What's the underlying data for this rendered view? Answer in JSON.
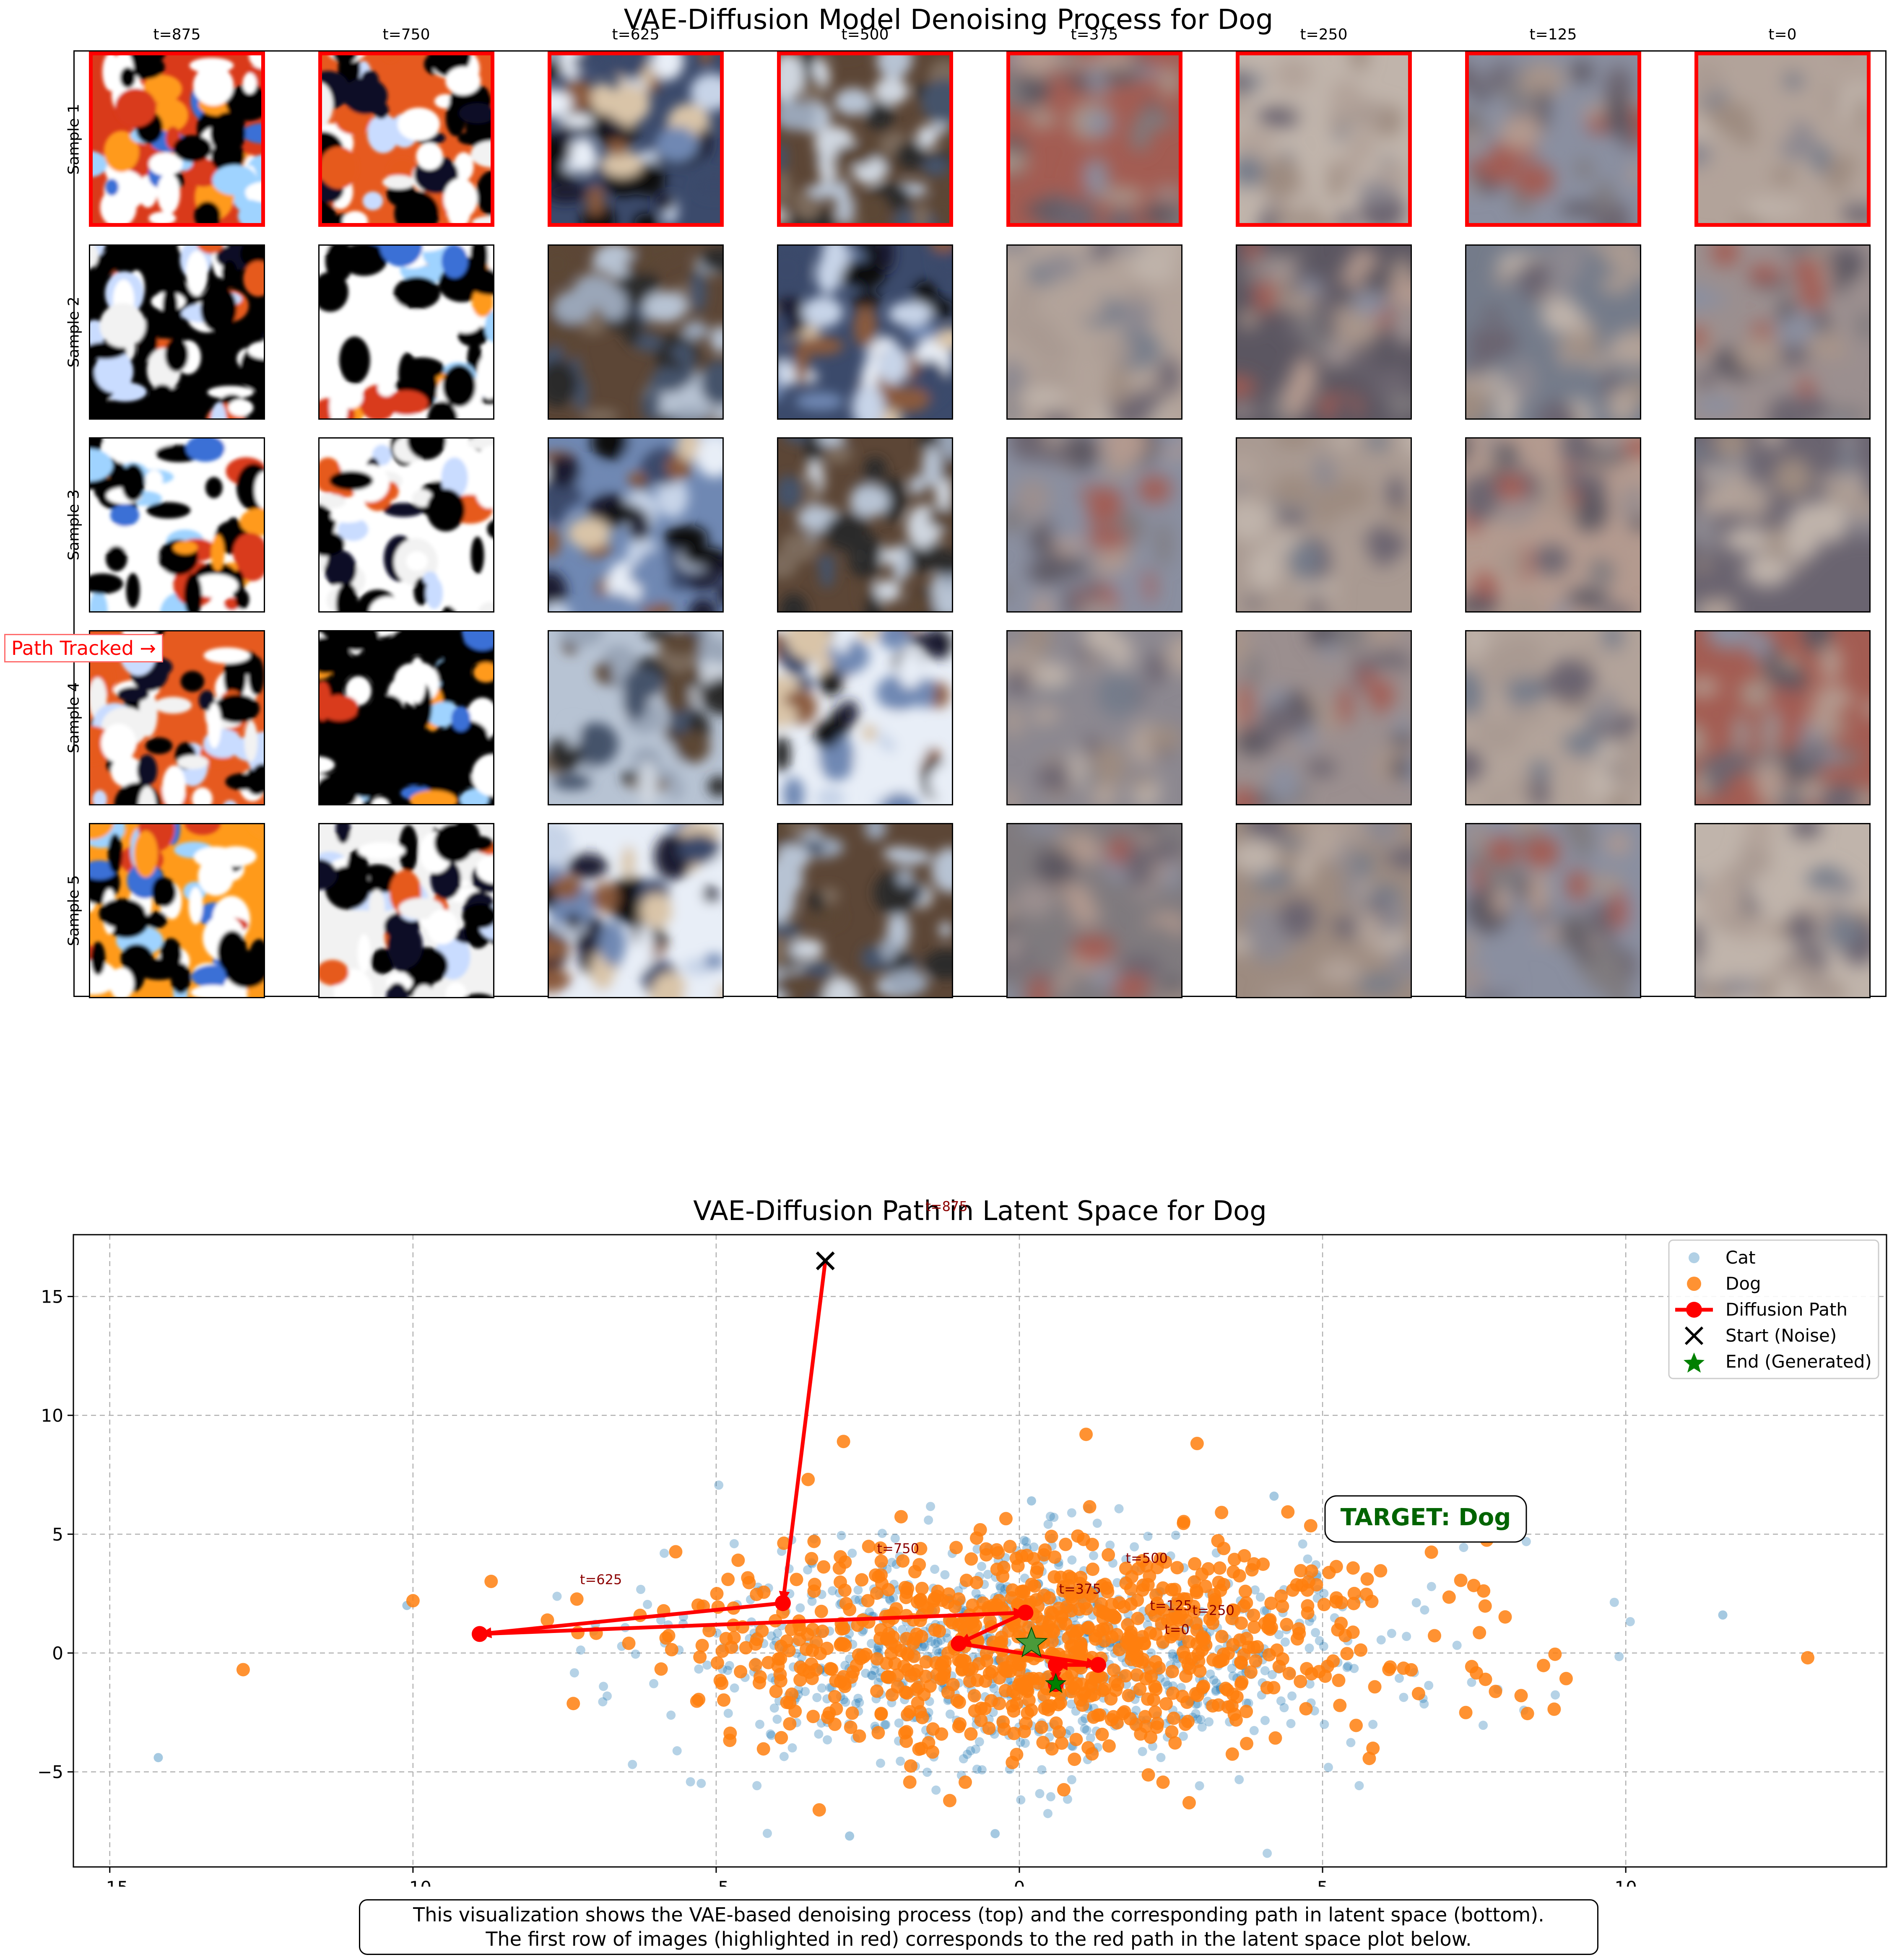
{
  "figure": {
    "title": "VAE-Diffusion Model Denoising Process for Dog",
    "timesteps": [
      "t=875",
      "t=750",
      "t=625",
      "t=500",
      "t=375",
      "t=250",
      "t=125",
      "t=0"
    ],
    "samples": [
      "Sample 1",
      "Sample 2",
      "Sample 3",
      "Sample 4",
      "Sample 5"
    ],
    "highlighted_row": 0,
    "path_tracked_label": "Path Tracked →",
    "caption_line1": "This visualization shows the VAE-based denoising process (top) and the corresponding path in latent space (bottom).",
    "caption_line2": "The first row of images (highlighted in red) corresponds to the red path in the latent space plot below."
  },
  "chart_data": {
    "type": "scatter",
    "title": "VAE-Diffusion Path in Latent Space for Dog",
    "xlabel": "",
    "ylabel": "",
    "xlim": [
      -15.6,
      14.3
    ],
    "ylim": [
      -9.0,
      17.6
    ],
    "xticks": [
      -15,
      -10,
      -5,
      0,
      5,
      10
    ],
    "yticks": [
      -5,
      0,
      5,
      10,
      15
    ],
    "grid": true,
    "legend_position": "upper right",
    "legend": [
      "Cat",
      "Dog",
      "Diffusion Path",
      "Start (Noise)",
      "End (Generated)"
    ],
    "series": [
      {
        "name": "Cat",
        "color": "#1f77b4",
        "count": 900,
        "center": [
          0.2,
          0.0
        ],
        "spread": [
          2.9,
          2.3
        ],
        "extreme_points": [
          [
            -14.2,
            -4.4
          ],
          [
            -10.1,
            2.0
          ],
          [
            0.2,
            6.4
          ],
          [
            4.2,
            6.6
          ],
          [
            11.6,
            1.6
          ],
          [
            -2.8,
            -7.7
          ],
          [
            -0.4,
            -7.6
          ]
        ]
      },
      {
        "name": "Dog",
        "color": "#ff7f0e",
        "count": 900,
        "center": [
          0.4,
          0.4
        ],
        "spread": [
          2.9,
          2.2
        ],
        "extreme_points": [
          [
            -12.8,
            -0.7
          ],
          [
            13.0,
            -0.2
          ],
          [
            1.1,
            9.2
          ],
          [
            -2.9,
            8.9
          ],
          [
            -3.3,
            -6.6
          ],
          [
            2.8,
            -6.3
          ],
          [
            -10.0,
            2.2
          ]
        ]
      }
    ],
    "diffusion_path": {
      "name": "Diffusion Path",
      "color": "#ff0000",
      "points": [
        [
          -3.2,
          16.5
        ],
        [
          -3.9,
          2.1
        ],
        [
          -8.9,
          0.8
        ],
        [
          0.1,
          1.7
        ],
        [
          -1.0,
          0.4
        ],
        [
          1.3,
          -0.5
        ],
        [
          0.6,
          -0.5
        ],
        [
          0.6,
          -1.3
        ]
      ],
      "labels": [
        "t=875",
        "t=750",
        "t=625",
        "t=500",
        "t=375",
        "t=250",
        "t=125",
        "t=0"
      ],
      "label_points": [
        [
          -1.2,
          18.6
        ],
        [
          -2.0,
          4.2
        ],
        [
          -6.9,
          2.9
        ],
        [
          2.1,
          3.8
        ],
        [
          1.0,
          2.5
        ],
        [
          3.2,
          1.6
        ],
        [
          2.5,
          1.8
        ],
        [
          2.6,
          0.8
        ]
      ]
    },
    "start": {
      "name": "Start (Noise)",
      "point": [
        -3.2,
        16.5
      ],
      "color": "#000000"
    },
    "end": {
      "name": "End (Generated)",
      "point": [
        0.6,
        -1.3
      ],
      "color": "#008000"
    },
    "end_large_star": [
      0.2,
      0.4
    ],
    "annotation": {
      "text": "TARGET: Dog",
      "point": [
        6.7,
        5.6
      ],
      "color": "#006400"
    }
  }
}
